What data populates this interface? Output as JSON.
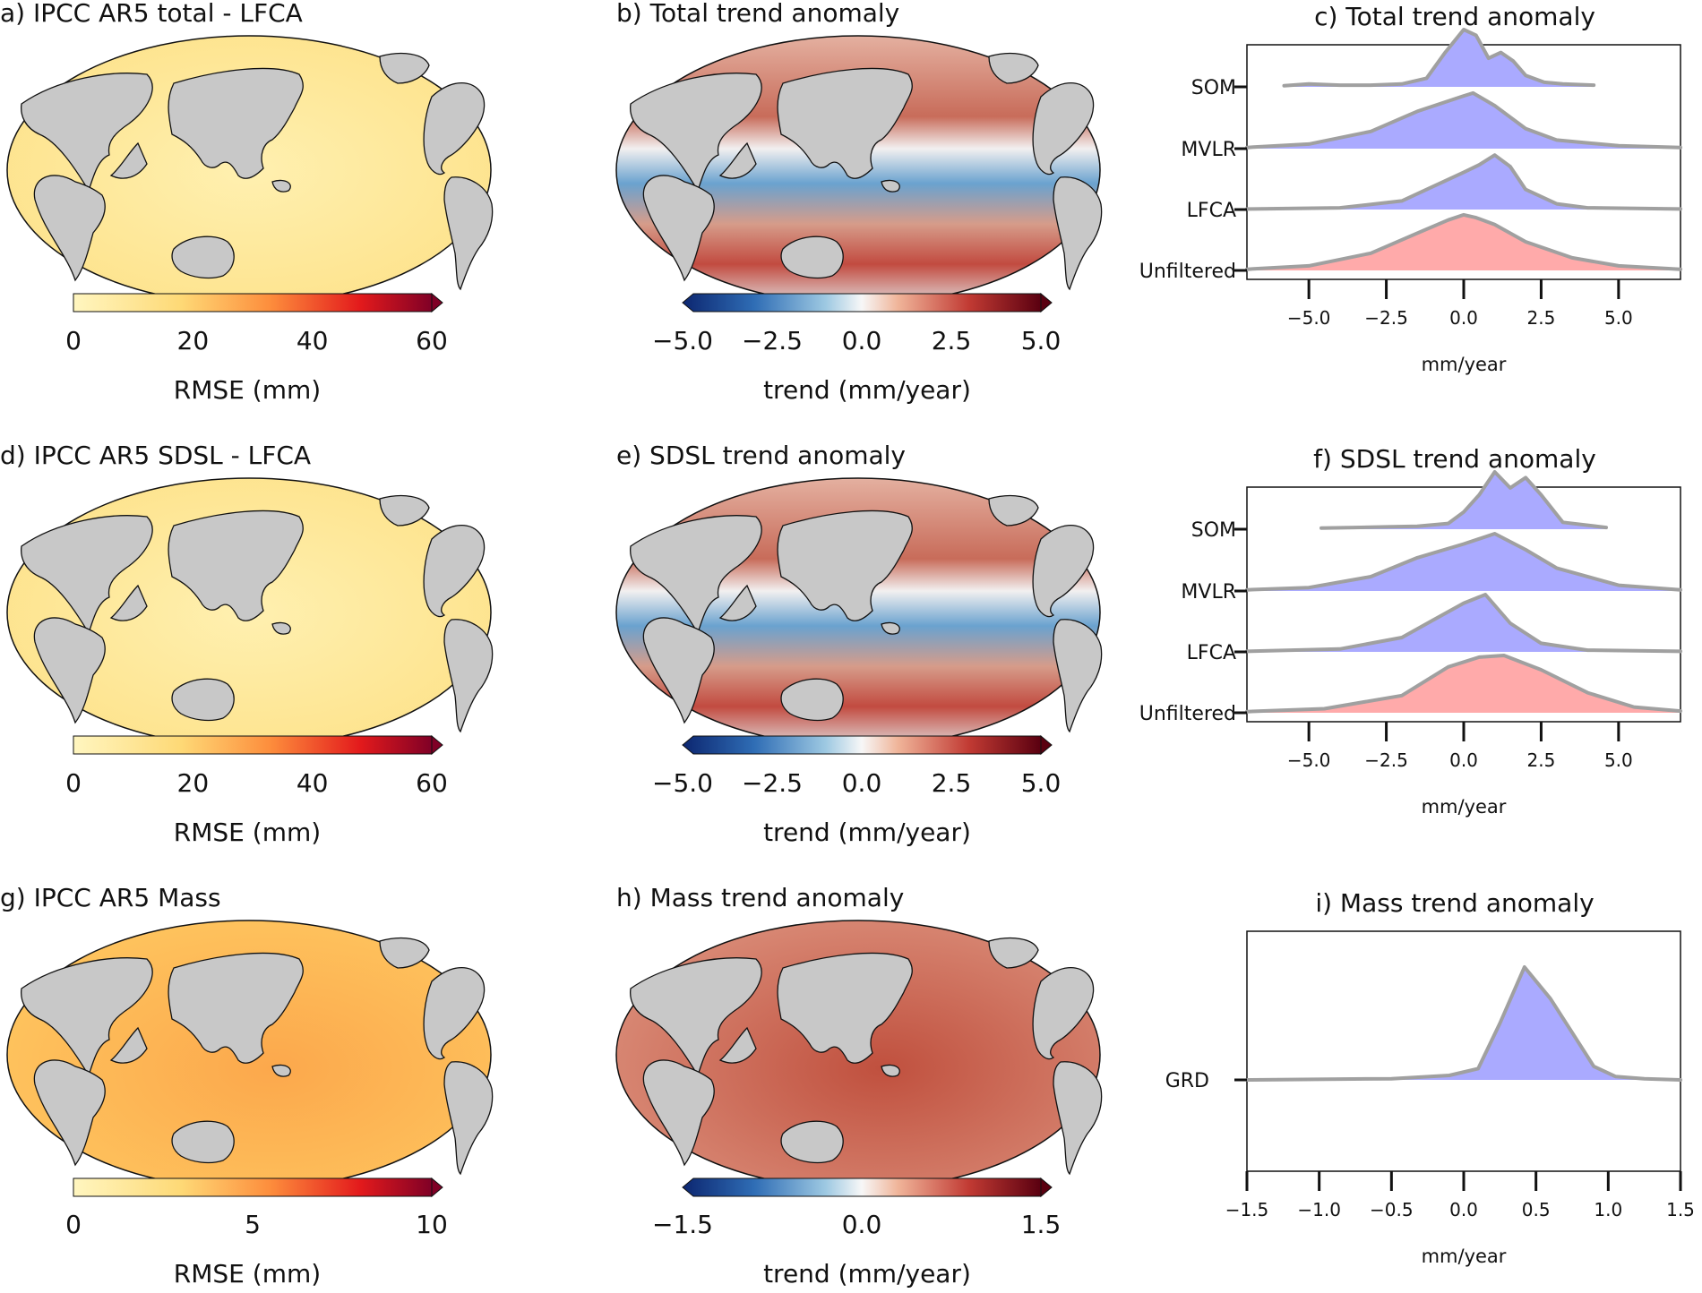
{
  "panels": {
    "a": {
      "title": "a) IPCC AR5 total - LFCA",
      "cbar_ticks": [
        "0",
        "20",
        "40",
        "60"
      ],
      "cbar_label": "RMSE (mm)"
    },
    "b": {
      "title": "b) Total trend anomaly",
      "cbar_ticks": [
        "−5.0",
        "−2.5",
        "0.0",
        "2.5",
        "5.0"
      ],
      "cbar_label": "trend (mm/year)"
    },
    "d": {
      "title": "d) IPCC AR5 SDSL - LFCA",
      "cbar_ticks": [
        "0",
        "20",
        "40",
        "60"
      ],
      "cbar_label": "RMSE (mm)"
    },
    "e": {
      "title": "e) SDSL trend anomaly",
      "cbar_ticks": [
        "−5.0",
        "−2.5",
        "0.0",
        "2.5",
        "5.0"
      ],
      "cbar_label": "trend (mm/year)"
    },
    "g": {
      "title": "g) IPCC AR5 Mass",
      "cbar_ticks": [
        "0",
        "5",
        "10"
      ],
      "cbar_label": "RMSE (mm)"
    },
    "h": {
      "title": "h) Mass trend anomaly",
      "cbar_ticks": [
        "−1.5",
        "0.0",
        "1.5"
      ],
      "cbar_label": "trend (mm/year)"
    }
  },
  "colors": {
    "land": "#c8c8c8",
    "seq_low": "#fff6c0",
    "seq_mid": "#fd9c3c",
    "seq_high": "#800026",
    "div_low": "#0c2670",
    "div_mid": "#f7f7f7",
    "div_high": "#5a0010",
    "ridge_blue": "#aaaaff",
    "ridge_red": "#ffaaaa",
    "ridge_line": "#a0a0a0"
  },
  "chart_data": [
    {
      "type": "area",
      "title": "c) Total trend anomaly",
      "xlabel": "mm/year",
      "xlim": [
        -7,
        7
      ],
      "xticks": [
        "−5.0",
        "−2.5",
        "0.0",
        "2.5",
        "5.0"
      ],
      "xtick_values": [
        -5,
        -2.5,
        0,
        2.5,
        5
      ],
      "series": [
        {
          "name": "SOM",
          "color": "#aaaaff",
          "x": [
            -5.8,
            -5,
            -4,
            -3,
            -2,
            -1.2,
            -0.6,
            0,
            0.4,
            0.8,
            1.2,
            1.6,
            2,
            2.6,
            3.2,
            4.2
          ],
          "y": [
            0.02,
            0.05,
            0.03,
            0.03,
            0.05,
            0.15,
            0.6,
            1,
            0.9,
            0.5,
            0.6,
            0.45,
            0.2,
            0.08,
            0.05,
            0.03
          ]
        },
        {
          "name": "MVLR",
          "color": "#aaaaff",
          "x": [
            -7,
            -5,
            -3,
            -1.5,
            0,
            0.3,
            1,
            2,
            3,
            5,
            7
          ],
          "y": [
            0.02,
            0.08,
            0.3,
            0.65,
            0.92,
            0.97,
            0.75,
            0.35,
            0.15,
            0.05,
            0.02
          ]
        },
        {
          "name": "LFCA",
          "color": "#aaaaff",
          "x": [
            -7,
            -4,
            -2,
            -1,
            0,
            0.5,
            1,
            1.5,
            2,
            3,
            4,
            7
          ],
          "y": [
            0.01,
            0.03,
            0.15,
            0.4,
            0.65,
            0.78,
            0.95,
            0.75,
            0.35,
            0.1,
            0.03,
            0.01
          ]
        },
        {
          "name": "Unfiltered",
          "color": "#ffaaaa",
          "x": [
            -7,
            -5,
            -3,
            -1.5,
            -0.5,
            0,
            0.4,
            1,
            2,
            3.5,
            5,
            7
          ],
          "y": [
            0.02,
            0.08,
            0.3,
            0.65,
            0.88,
            0.97,
            0.92,
            0.8,
            0.5,
            0.22,
            0.08,
            0.02
          ]
        }
      ]
    },
    {
      "type": "area",
      "title": "f) SDSL trend anomaly",
      "xlabel": "mm/year",
      "xlim": [
        -7,
        7
      ],
      "xticks": [
        "−5.0",
        "−2.5",
        "0.0",
        "2.5",
        "5.0"
      ],
      "xtick_values": [
        -5,
        -2.5,
        0,
        2.5,
        5
      ],
      "series": [
        {
          "name": "SOM",
          "color": "#aaaaff",
          "x": [
            -4.6,
            -3.5,
            -2.5,
            -1.5,
            -0.5,
            0,
            0.5,
            1,
            1.5,
            2,
            2.5,
            3.2,
            4.6
          ],
          "y": [
            0.02,
            0.03,
            0.04,
            0.05,
            0.1,
            0.3,
            0.6,
            1,
            0.72,
            0.9,
            0.6,
            0.12,
            0.03
          ]
        },
        {
          "name": "MVLR",
          "color": "#aaaaff",
          "x": [
            -7,
            -5,
            -3,
            -1.5,
            0,
            1,
            2,
            3,
            5,
            7
          ],
          "y": [
            0.02,
            0.06,
            0.25,
            0.58,
            0.82,
            1,
            0.72,
            0.4,
            0.1,
            0.02
          ]
        },
        {
          "name": "LFCA",
          "color": "#aaaaff",
          "x": [
            -7,
            -4,
            -2,
            -1,
            0,
            0.7,
            1.5,
            2.5,
            4,
            7
          ],
          "y": [
            0.01,
            0.05,
            0.25,
            0.55,
            0.85,
            1,
            0.5,
            0.15,
            0.03,
            0.01
          ]
        },
        {
          "name": "Unfiltered",
          "color": "#ffaaaa",
          "x": [
            -7,
            -4.5,
            -2,
            -0.5,
            0.5,
            1.3,
            2.5,
            4,
            5.5,
            7
          ],
          "y": [
            0.02,
            0.07,
            0.3,
            0.8,
            0.97,
            1,
            0.75,
            0.35,
            0.1,
            0.03
          ]
        }
      ]
    },
    {
      "type": "area",
      "title": "i) Mass trend anomaly",
      "xlabel": "mm/year",
      "xlim": [
        -1.5,
        1.5
      ],
      "xticks": [
        "−1.5",
        "−1.0",
        "−0.5",
        "0.0",
        "0.5",
        "1.0",
        "1.5"
      ],
      "xtick_values": [
        -1.5,
        -1,
        -0.5,
        0,
        0.5,
        1,
        1.5
      ],
      "series": [
        {
          "name": "GRD",
          "color": "#aaaaff",
          "x": [
            -1.5,
            -0.5,
            -0.1,
            0.1,
            0.25,
            0.42,
            0.6,
            0.75,
            0.9,
            1.05,
            1.25,
            1.5
          ],
          "y": [
            0,
            0.01,
            0.04,
            0.1,
            0.5,
            1,
            0.72,
            0.42,
            0.12,
            0.03,
            0.01,
            0
          ]
        }
      ]
    }
  ]
}
